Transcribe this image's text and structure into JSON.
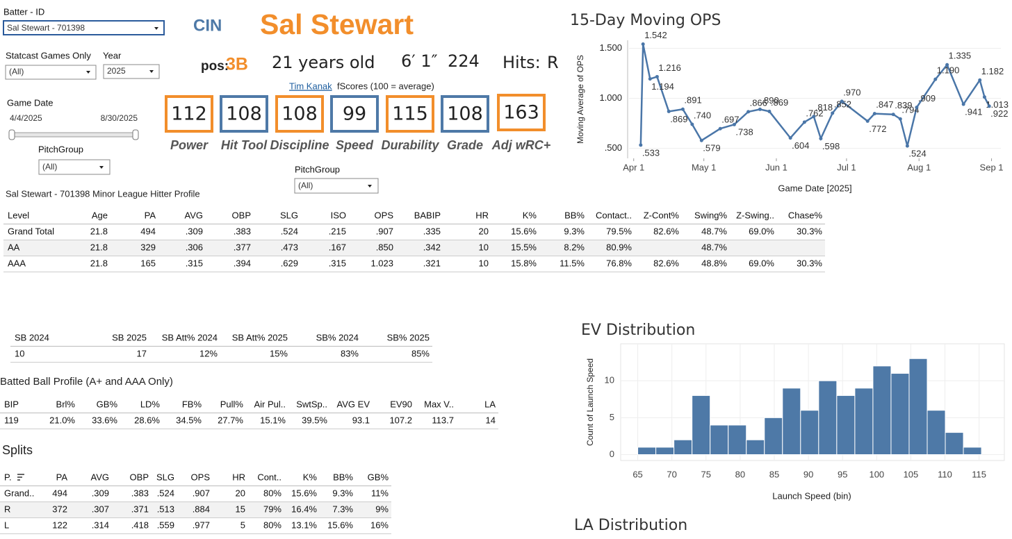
{
  "filters": {
    "batter_label": "Batter - ID",
    "batter": "Sal Stewart - 701398",
    "statcast_label": "Statcast Games Only",
    "statcast": "(All)",
    "year_label": "Year",
    "year": "2025",
    "date_label": "Game Date",
    "date_start": "4/4/2025",
    "date_end": "8/30/2025",
    "pitchgroup_label": "PitchGroup",
    "pitchgroup": "(All)"
  },
  "pitchgroup2": {
    "label": "PitchGroup",
    "value": "(All)"
  },
  "header": {
    "team": "CIN",
    "name": "Sal Stewart",
    "pos_label": "pos:",
    "pos": "3B",
    "age": "21 years old",
    "height": "6′ 1″",
    "weight": "224",
    "hits_label": "Hits:",
    "hits": "R"
  },
  "fscores": {
    "author": "Tim Kanak",
    "caption": "fScores (100 = average)",
    "items": [
      {
        "label": "Power",
        "value": 112,
        "color": "#f28e2b"
      },
      {
        "label": "Hit Tool",
        "value": 108,
        "color": "#4e79a7"
      },
      {
        "label": "Discipline",
        "value": 108,
        "color": "#f28e2b"
      },
      {
        "label": "Speed",
        "value": 99,
        "color": "#4e79a7"
      },
      {
        "label": "Durability",
        "value": 115,
        "color": "#f28e2b"
      },
      {
        "label": "Grade",
        "value": 108,
        "color": "#4e79a7"
      },
      {
        "label": "Adj wRC+",
        "value": 163,
        "color": "#f28e2b"
      }
    ]
  },
  "chart_data": [
    {
      "type": "line",
      "title": "15-Day Moving OPS",
      "x_label": "Game Date [2025]",
      "y_label": "Moving Average of OPS",
      "color": "#4a76a8",
      "x": [
        "2025-04-04",
        "2025-04-05",
        "2025-04-08",
        "2025-04-11",
        "2025-04-16",
        "2025-04-22",
        "2025-04-26",
        "2025-04-30",
        "2025-05-08",
        "2025-05-14",
        "2025-05-20",
        "2025-05-25",
        "2025-05-29",
        "2025-06-07",
        "2025-06-13",
        "2025-06-17",
        "2025-06-20",
        "2025-06-25",
        "2025-06-29",
        "2025-07-10",
        "2025-07-13",
        "2025-07-21",
        "2025-07-24",
        "2025-07-27",
        "2025-07-31",
        "2025-08-08",
        "2025-08-13",
        "2025-08-20",
        "2025-08-27",
        "2025-08-29",
        "2025-08-31"
      ],
      "values": [
        0.533,
        1.542,
        1.194,
        1.216,
        0.869,
        0.891,
        0.74,
        0.579,
        0.697,
        0.738,
        0.866,
        0.89,
        0.869,
        0.604,
        0.762,
        0.818,
        0.598,
        0.852,
        0.97,
        0.772,
        0.847,
        0.839,
        0.794,
        0.524,
        0.909,
        1.19,
        1.335,
        0.941,
        1.182,
        1.013,
        0.922
      ],
      "value_labels": [
        ".533",
        "1.542",
        "1.194",
        "1.216",
        ".869",
        ".891",
        ".740",
        ".579",
        ".697",
        ".738",
        ".866",
        ".890",
        ".869",
        ".604",
        ".762",
        ".818",
        ".598",
        ".852",
        ".970",
        ".772",
        ".847",
        ".839",
        ".794",
        ".524",
        ".909",
        "1.190",
        "1.335",
        ".941",
        "1.182",
        "1.013",
        ".922"
      ],
      "xlim": [
        "2025-03-30",
        "2025-09-05"
      ],
      "xticks": [
        {
          "value": "2025-04-01",
          "label": "Apr 1"
        },
        {
          "value": "2025-05-01",
          "label": "May 1"
        },
        {
          "value": "2025-06-01",
          "label": "Jun 1"
        },
        {
          "value": "2025-07-01",
          "label": "Jul 1"
        },
        {
          "value": "2025-08-01",
          "label": "Aug 1"
        },
        {
          "value": "2025-09-01",
          "label": "Sep 1"
        }
      ],
      "ylim": [
        0.4,
        1.58
      ],
      "yticks": [
        {
          "value": 1.5,
          "label": "1.500"
        },
        {
          "value": 1,
          "label": "1.000"
        },
        {
          "value": 0.5,
          "label": ".500"
        }
      ]
    },
    {
      "type": "histogram",
      "title": "EV Distribution",
      "x_label": "Launch Speed (bin)",
      "y_label": "Count of Launch Speed",
      "color": "#4e79a7",
      "grid": true,
      "bins": [
        65,
        67.65,
        70.3,
        72.95,
        75.6,
        78.25,
        80.9,
        83.55,
        86.2,
        88.85,
        91.5,
        94.15,
        96.8,
        99.45,
        102.1,
        104.75,
        107.4,
        110.05,
        112.7,
        115.35
      ],
      "values": [
        1,
        1,
        2,
        8,
        4,
        4,
        2,
        5,
        9,
        6,
        10,
        8,
        9,
        12,
        11,
        13,
        6,
        3,
        1
      ],
      "xlim": [
        62.5,
        118.7
      ],
      "xticks": [
        65,
        70,
        75,
        80,
        85,
        90,
        95,
        100,
        105,
        110,
        115
      ],
      "ylim": [
        -0.8,
        15
      ],
      "yticks": [
        0,
        5,
        10
      ]
    }
  ],
  "la_distribution": {
    "title": "LA Distribution"
  },
  "hitter_profile": {
    "title": "Sal Stewart - 701398 Minor League Hitter Profile",
    "columns": [
      "Level",
      "Age",
      "PA",
      "AVG",
      "OBP",
      "SLG",
      "ISO",
      "OPS",
      "BABIP",
      "HR",
      "K%",
      "BB%",
      "Contact..",
      "Z-Cont%",
      "Swing%",
      "Z-Swing..",
      "Chase%"
    ],
    "rows": [
      [
        "Grand Total",
        "21.8",
        "494",
        ".309",
        ".383",
        ".524",
        ".215",
        ".907",
        ".335",
        "20",
        "15.6%",
        "9.3%",
        "79.5%",
        "82.6%",
        "48.7%",
        "69.0%",
        "30.3%"
      ],
      [
        "AA",
        "21.8",
        "329",
        ".306",
        ".377",
        ".473",
        ".167",
        ".850",
        ".342",
        "10",
        "15.5%",
        "8.2%",
        "80.9%",
        null,
        "48.7%",
        null,
        null
      ],
      [
        "AAA",
        "21.8",
        "165",
        ".315",
        ".394",
        ".629",
        ".315",
        "1.023",
        ".321",
        "10",
        "15.8%",
        "11.5%",
        "76.8%",
        "82.6%",
        "48.8%",
        "69.0%",
        "30.3%"
      ]
    ]
  },
  "stolen_bases": {
    "columns": [
      "SB 2024",
      "SB 2025",
      "SB Att% 2024",
      "SB Att% 2025",
      "SB% 2024",
      "SB% 2025"
    ],
    "rows": [
      [
        "10",
        "17",
        "12%",
        "15%",
        "83%",
        "85%"
      ]
    ]
  },
  "batted_ball": {
    "title": "Batted Ball Profile (A+ and AAA Only)",
    "columns": [
      "BIP",
      "Brl%",
      "GB%",
      "LD%",
      "FB%",
      "Pull%",
      "Air Pul..",
      "SwtSp..",
      "AVG EV",
      "EV90",
      "Max V..",
      "LA"
    ],
    "rows": [
      [
        "119",
        "21.0%",
        "33.6%",
        "28.6%",
        "34.5%",
        "27.7%",
        "15.1%",
        "39.5%",
        "93.1",
        "107.2",
        "113.7",
        "14"
      ]
    ]
  },
  "splits": {
    "title": "Splits",
    "columns": [
      "P.",
      "PA",
      "AVG",
      "OBP",
      "SLG",
      "OPS",
      "HR",
      "Cont..",
      "K%",
      "BB%",
      "GB%"
    ],
    "rows": [
      [
        "Grand..",
        "494",
        ".309",
        ".383",
        ".524",
        ".907",
        "20",
        "80%",
        "15.6%",
        "9.3%",
        "11%"
      ],
      [
        "R",
        "372",
        ".307",
        ".371",
        ".513",
        ".884",
        "15",
        "79%",
        "16.4%",
        "7.3%",
        "9%"
      ],
      [
        "L",
        "122",
        ".314",
        ".418",
        ".559",
        ".977",
        "5",
        "80%",
        "13.1%",
        "15.6%",
        "16%"
      ]
    ]
  }
}
